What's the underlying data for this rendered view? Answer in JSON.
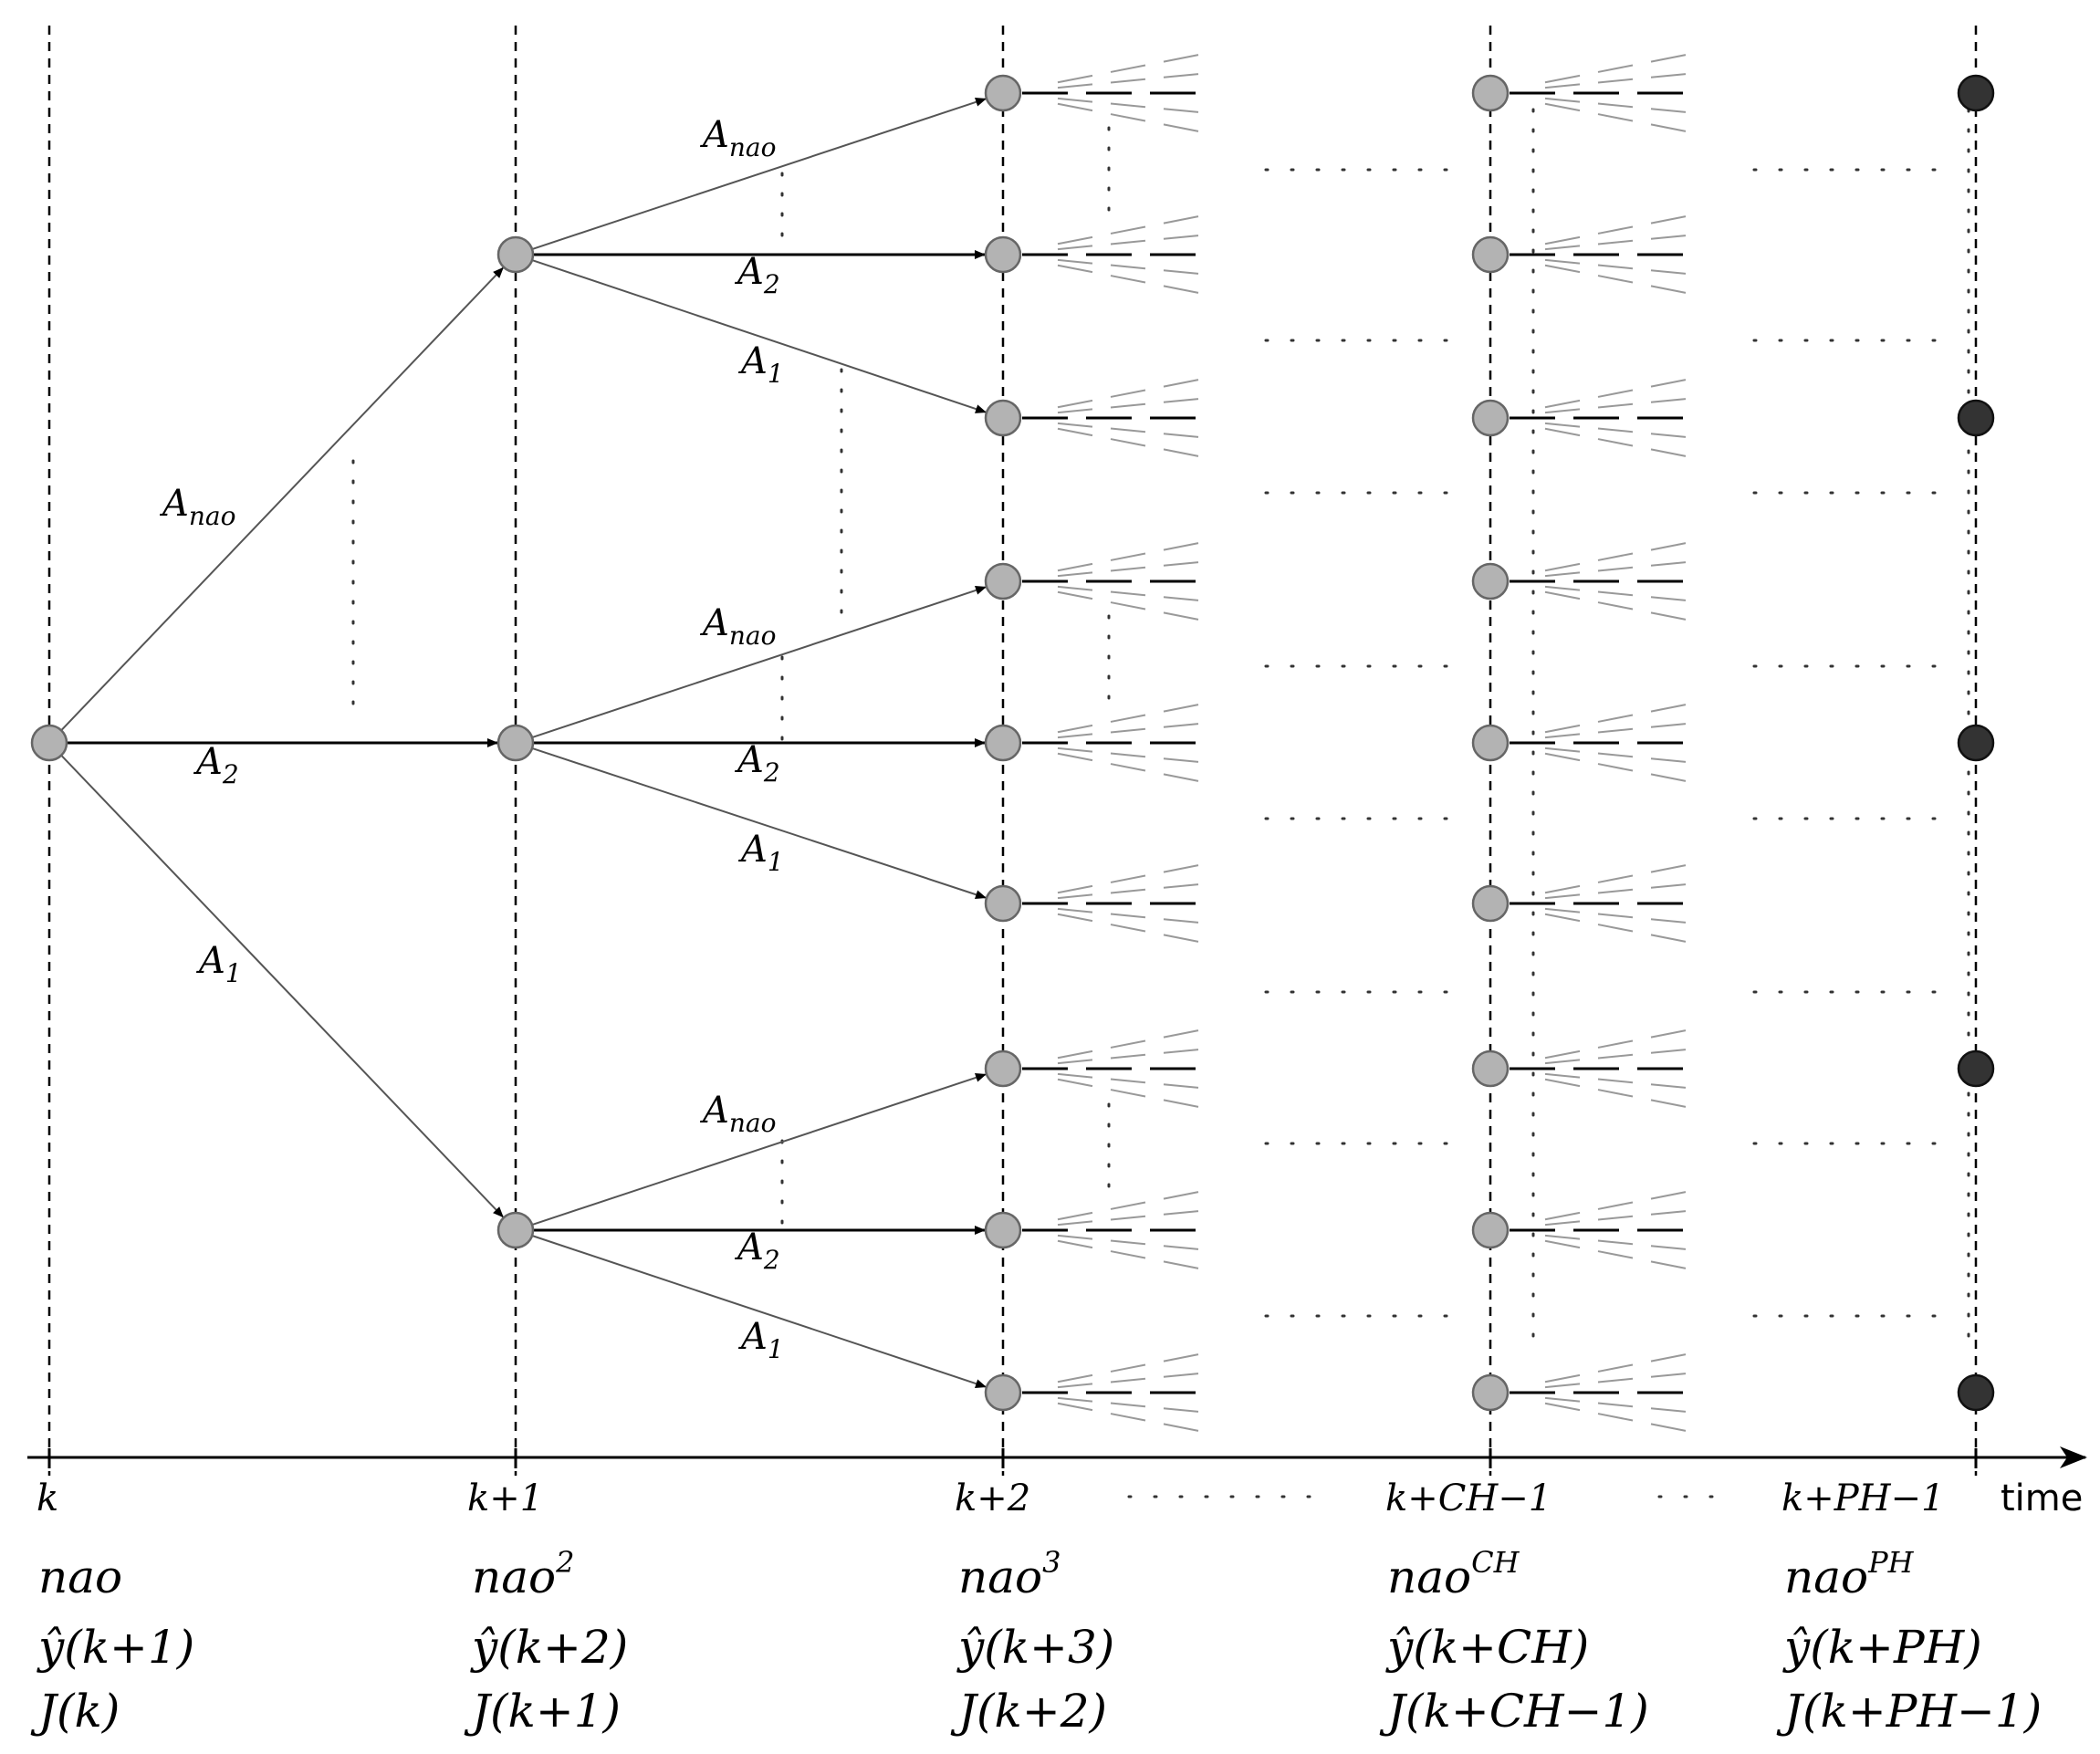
{
  "axis": {
    "label": "time",
    "ticks": [
      "k",
      "k+1",
      "k+2",
      "k+CH−1",
      "k+PH−1"
    ]
  },
  "edge_labels": {
    "top": "A",
    "top_sub": "nao",
    "middle": "A",
    "middle_sub": "2",
    "bottom": "A",
    "bottom_sub": "1"
  },
  "columns": [
    {
      "nao": "nao",
      "nao_sup": "",
      "y": "ŷ(k+1)",
      "J": "J(k)"
    },
    {
      "nao": "nao",
      "nao_sup": "2",
      "y": "ŷ(k+2)",
      "J": "J(k+1)"
    },
    {
      "nao": "nao",
      "nao_sup": "3",
      "y": "ŷ(k+3)",
      "J": "J(k+2)"
    },
    {
      "nao": "nao",
      "nao_sup": "CH",
      "y": "ŷ(k+CH)",
      "J": "J(k+CH−1)"
    },
    {
      "nao": "nao",
      "nao_sup": "PH",
      "y": "ŷ(k+PH)",
      "J": "J(k+PH−1)"
    }
  ],
  "colors": {
    "node_gray": "#b3b3b3",
    "node_dark": "#333333"
  }
}
